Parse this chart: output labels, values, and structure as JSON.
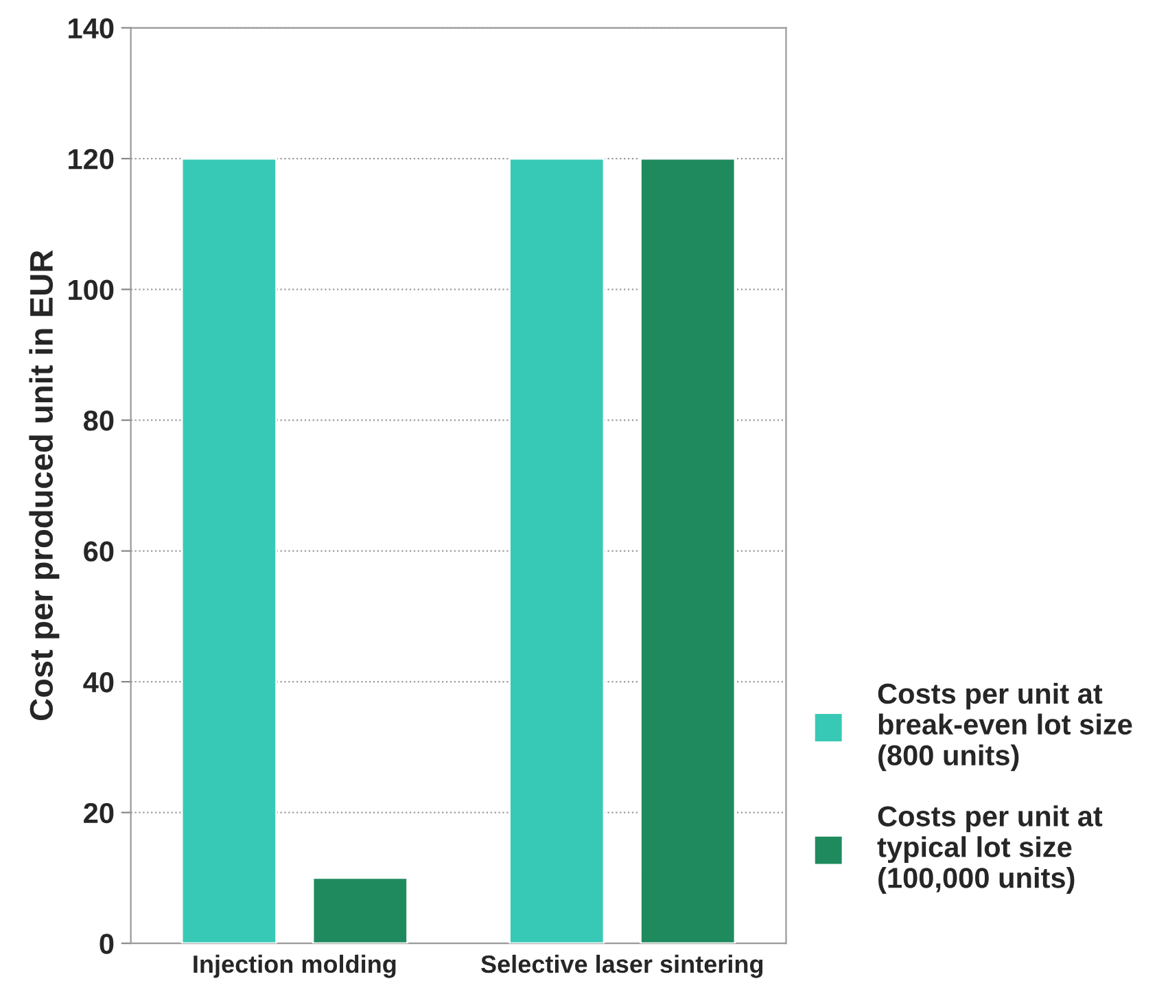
{
  "chart_data": {
    "type": "bar",
    "ylabel": "Cost per produced unit in EUR",
    "categories": [
      "Injection molding",
      "Selective laser sintering"
    ],
    "series": [
      {
        "name": "Costs per unit at\nbreak-even lot size\n(800 units)",
        "color": "#38c9b6",
        "values": [
          120,
          120
        ]
      },
      {
        "name": "Costs per unit at\ntypical lot size\n(100,000 units)",
        "color": "#1e8a5e",
        "values": [
          10,
          120
        ]
      }
    ],
    "ylim": [
      0,
      140
    ],
    "yticks": [
      0,
      20,
      40,
      60,
      80,
      100,
      120,
      140
    ],
    "grid": "y",
    "legend": "bottom right"
  }
}
